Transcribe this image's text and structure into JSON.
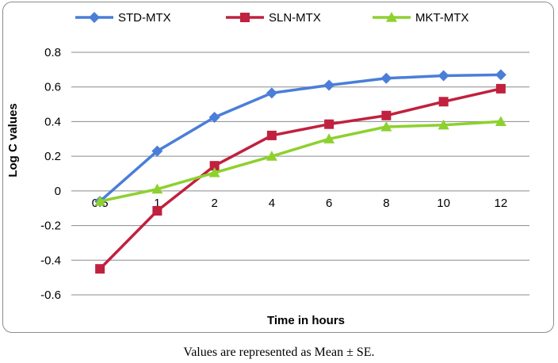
{
  "chart_data": {
    "type": "line",
    "categories": [
      "0.5",
      "1",
      "2",
      "4",
      "6",
      "8",
      "10",
      "12"
    ],
    "series": [
      {
        "name": "STD-MTX",
        "color": "#4a7ed8",
        "marker": "diamond",
        "values": [
          -0.06,
          0.23,
          0.425,
          0.565,
          0.61,
          0.65,
          0.665,
          0.67
        ]
      },
      {
        "name": "SLN-MTX",
        "color": "#c0213f",
        "marker": "square",
        "values": [
          -0.45,
          -0.115,
          0.145,
          0.32,
          0.385,
          0.435,
          0.515,
          0.59
        ]
      },
      {
        "name": "MKT-MTX",
        "color": "#8dd12e",
        "marker": "triangle",
        "values": [
          -0.06,
          0.01,
          0.105,
          0.2,
          0.3,
          0.37,
          0.38,
          0.4
        ]
      }
    ],
    "ylim": [
      -0.6,
      0.8
    ],
    "yticks": [
      "0.8",
      "0.6",
      "0.4",
      "0.2",
      "0",
      "-0.2",
      "-0.4",
      "-0.6"
    ],
    "xlabel": "Time in hours",
    "ylabel": "Log C values",
    "grid": true,
    "legend": "top"
  },
  "caption": "Values are represented as Mean ± SE."
}
